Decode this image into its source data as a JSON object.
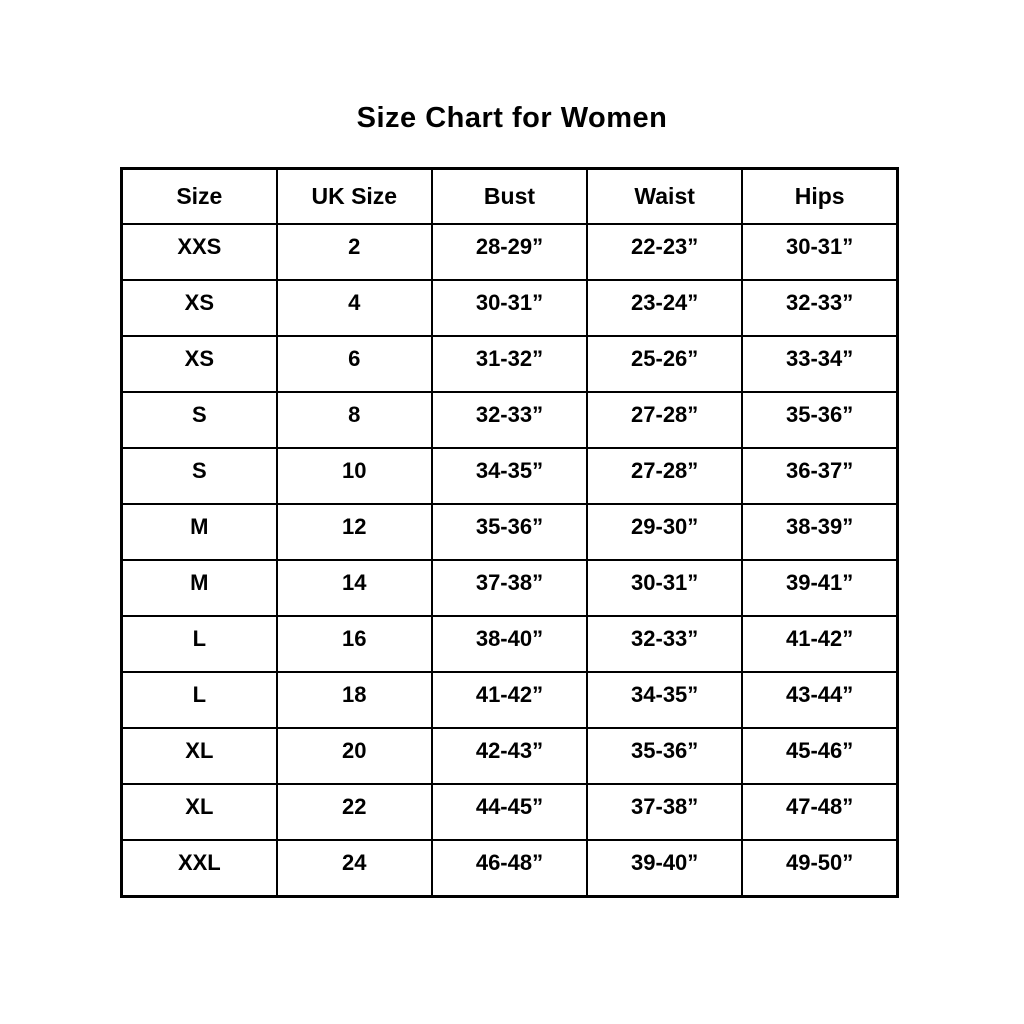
{
  "page": {
    "title": "Size Chart for Women"
  },
  "colors": {
    "background": "#ffffff",
    "border": "#000000",
    "text": "#000000"
  },
  "chart_data": {
    "type": "table",
    "title": "Size Chart for Women",
    "headers": [
      "Size",
      "UK Size",
      "Bust",
      "Waist",
      "Hips"
    ],
    "rows": [
      [
        "XXS",
        "2",
        "28-29”",
        "22-23”",
        "30-31”"
      ],
      [
        "XS",
        "4",
        "30-31”",
        "23-24”",
        "32-33”"
      ],
      [
        "XS",
        "6",
        "31-32”",
        "25-26”",
        "33-34”"
      ],
      [
        "S",
        "8",
        "32-33”",
        "27-28”",
        "35-36”"
      ],
      [
        "S",
        "10",
        "34-35”",
        "27-28”",
        "36-37”"
      ],
      [
        "M",
        "12",
        "35-36”",
        "29-30”",
        "38-39”"
      ],
      [
        "M",
        "14",
        "37-38”",
        "30-31”",
        "39-41”"
      ],
      [
        "L",
        "16",
        "38-40”",
        "32-33”",
        "41-42”"
      ],
      [
        "L",
        "18",
        "41-42”",
        "34-35”",
        "43-44”"
      ],
      [
        "XL",
        "20",
        "42-43”",
        "35-36”",
        "45-46”"
      ],
      [
        "XL",
        "22",
        "44-45”",
        "37-38”",
        "47-48”"
      ],
      [
        "XXL",
        "24",
        "46-48”",
        "39-40”",
        "49-50”"
      ]
    ]
  }
}
